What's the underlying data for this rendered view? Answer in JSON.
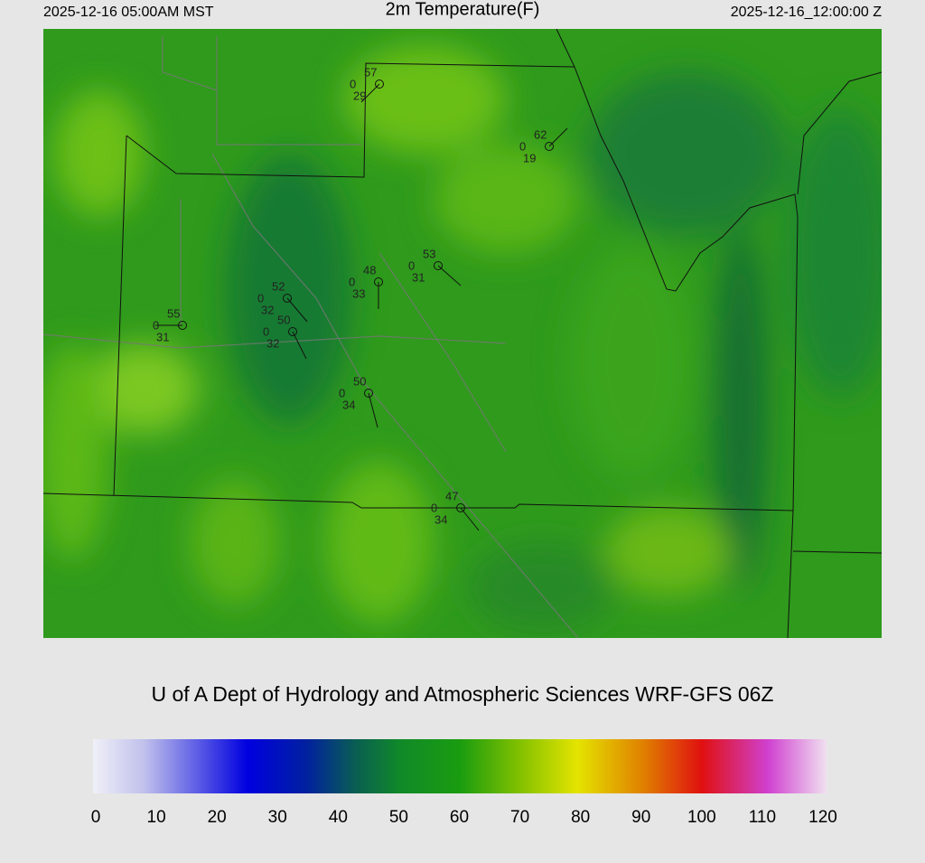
{
  "header": {
    "left_time": "2025-12-16 05:00AM MST",
    "title": "2m Temperature(F)",
    "right_time": "2025-12-16_12:00:00 Z"
  },
  "footer": {
    "credit": "U of A Dept of Hydrology and Atmospheric Sciences WRF-GFS 06Z"
  },
  "colorbar": {
    "lim": [
      0,
      120
    ],
    "ticks": [
      0,
      10,
      20,
      30,
      40,
      50,
      60,
      70,
      80,
      90,
      100,
      110,
      120
    ]
  },
  "stations": [
    {
      "temperature": 57,
      "wind": 0,
      "dewpoint": 29
    },
    {
      "temperature": 62,
      "wind": 0,
      "dewpoint": 19
    },
    {
      "temperature": 53,
      "wind": 0,
      "dewpoint": 31
    },
    {
      "temperature": 48,
      "wind": 0,
      "dewpoint": 33
    },
    {
      "temperature": 52,
      "wind": 0,
      "dewpoint": 32
    },
    {
      "temperature": 55,
      "wind": 0,
      "dewpoint": 31
    },
    {
      "temperature": 50,
      "wind": 0,
      "dewpoint": 32
    },
    {
      "temperature": 50,
      "wind": 0,
      "dewpoint": 34
    },
    {
      "temperature": 47,
      "wind": 0,
      "dewpoint": 34
    }
  ]
}
